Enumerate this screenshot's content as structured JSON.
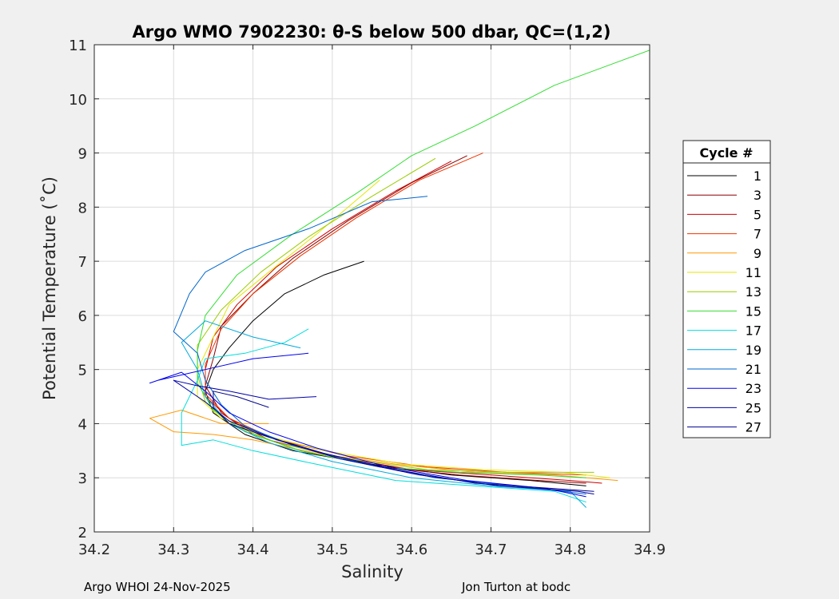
{
  "colors": {
    "figure_background": "#f0f0f0",
    "axes_background": "#ffffff",
    "grid": "#dcdcdc",
    "axis": "#262626"
  },
  "footer": {
    "left": "Argo WHOI 24-Nov-2025",
    "right": "Jon Turton at bodc"
  },
  "chart_data": {
    "type": "line",
    "title": "Argo WMO 7902230: θ-S below 500 dbar,  QC=(1,2)",
    "xlabel": "Salinity",
    "ylabel": "Potential Temperature (˚C)",
    "xlim": [
      34.2,
      34.9
    ],
    "ylim": [
      2,
      11
    ],
    "xticks": [
      "34.2",
      "34.3",
      "34.4",
      "34.5",
      "34.6",
      "34.7",
      "34.8",
      "34.9"
    ],
    "yticks": [
      "2",
      "3",
      "4",
      "5",
      "6",
      "7",
      "8",
      "9",
      "10",
      "11"
    ],
    "grid": true,
    "legend": {
      "title": "Cycle #",
      "placement": "outside-right"
    },
    "series": [
      {
        "name": "1",
        "color": "#000000",
        "points": [
          [
            34.54,
            7.0
          ],
          [
            34.49,
            6.75
          ],
          [
            34.44,
            6.4
          ],
          [
            34.4,
            5.9
          ],
          [
            34.37,
            5.4
          ],
          [
            34.35,
            5.0
          ],
          [
            34.34,
            4.6
          ],
          [
            34.35,
            4.2
          ],
          [
            34.39,
            3.8
          ],
          [
            34.45,
            3.5
          ],
          [
            34.55,
            3.25
          ],
          [
            34.65,
            3.05
          ],
          [
            34.75,
            2.95
          ],
          [
            34.82,
            2.85
          ]
        ]
      },
      {
        "name": "3",
        "color": "#8b0000",
        "points": [
          [
            34.67,
            8.95
          ],
          [
            34.6,
            8.45
          ],
          [
            34.52,
            7.75
          ],
          [
            34.45,
            7.05
          ],
          [
            34.4,
            6.4
          ],
          [
            34.36,
            5.8
          ],
          [
            34.35,
            5.2
          ],
          [
            34.34,
            4.7
          ],
          [
            34.36,
            4.2
          ],
          [
            34.4,
            3.8
          ],
          [
            34.46,
            3.5
          ],
          [
            34.56,
            3.2
          ],
          [
            34.66,
            3.05
          ],
          [
            34.76,
            2.95
          ],
          [
            34.82,
            2.9
          ]
        ]
      },
      {
        "name": "5",
        "color": "#cc0000",
        "points": [
          [
            34.65,
            8.85
          ],
          [
            34.58,
            8.3
          ],
          [
            34.5,
            7.6
          ],
          [
            34.43,
            6.9
          ],
          [
            34.38,
            6.2
          ],
          [
            34.35,
            5.6
          ],
          [
            34.34,
            5.0
          ],
          [
            34.34,
            4.5
          ],
          [
            34.37,
            4.1
          ],
          [
            34.42,
            3.7
          ],
          [
            34.5,
            3.4
          ],
          [
            34.6,
            3.15
          ],
          [
            34.7,
            3.05
          ],
          [
            34.8,
            2.95
          ],
          [
            34.84,
            2.9
          ]
        ]
      },
      {
        "name": "7",
        "color": "#ee3300",
        "points": [
          [
            34.69,
            9.0
          ],
          [
            34.61,
            8.5
          ],
          [
            34.53,
            7.8
          ],
          [
            34.46,
            7.1
          ],
          [
            34.4,
            6.4
          ],
          [
            34.36,
            5.75
          ],
          [
            34.34,
            5.1
          ],
          [
            34.34,
            4.55
          ],
          [
            34.37,
            4.1
          ],
          [
            34.43,
            3.7
          ],
          [
            34.52,
            3.4
          ],
          [
            34.62,
            3.2
          ],
          [
            34.72,
            3.1
          ],
          [
            34.82,
            3.05
          ]
        ]
      },
      {
        "name": "9",
        "color": "#ff9900",
        "points": [
          [
            34.42,
            4.0
          ],
          [
            34.36,
            4.0
          ],
          [
            34.31,
            4.25
          ],
          [
            34.27,
            4.1
          ],
          [
            34.3,
            3.85
          ],
          [
            34.35,
            3.8
          ],
          [
            34.4,
            3.7
          ],
          [
            34.48,
            3.45
          ],
          [
            34.58,
            3.25
          ],
          [
            34.68,
            3.1
          ],
          [
            34.78,
            3.05
          ],
          [
            34.86,
            2.95
          ]
        ]
      },
      {
        "name": "11",
        "color": "#e6e600",
        "points": [
          [
            34.56,
            8.5
          ],
          [
            34.48,
            7.5
          ],
          [
            34.42,
            6.8
          ],
          [
            34.37,
            6.2
          ],
          [
            34.35,
            5.6
          ],
          [
            34.33,
            5.0
          ],
          [
            34.33,
            4.5
          ],
          [
            34.36,
            4.1
          ],
          [
            34.41,
            3.8
          ],
          [
            34.49,
            3.5
          ],
          [
            34.59,
            3.25
          ],
          [
            34.69,
            3.15
          ],
          [
            34.79,
            3.1
          ],
          [
            34.85,
            3.0
          ]
        ]
      },
      {
        "name": "13",
        "color": "#99cc00",
        "points": [
          [
            34.63,
            8.9
          ],
          [
            34.55,
            8.2
          ],
          [
            34.47,
            7.45
          ],
          [
            34.41,
            6.8
          ],
          [
            34.36,
            6.1
          ],
          [
            34.33,
            5.45
          ],
          [
            34.33,
            4.9
          ],
          [
            34.34,
            4.4
          ],
          [
            34.37,
            4.0
          ],
          [
            34.43,
            3.65
          ],
          [
            34.52,
            3.35
          ],
          [
            34.62,
            3.15
          ],
          [
            34.72,
            3.1
          ],
          [
            34.83,
            3.1
          ]
        ]
      },
      {
        "name": "15",
        "color": "#33dd33",
        "points": [
          [
            34.9,
            10.9
          ],
          [
            34.78,
            10.25
          ],
          [
            34.68,
            9.5
          ],
          [
            34.6,
            8.95
          ],
          [
            34.53,
            8.25
          ],
          [
            34.45,
            7.5
          ],
          [
            34.38,
            6.75
          ],
          [
            34.34,
            6.0
          ],
          [
            34.33,
            5.35
          ],
          [
            34.33,
            4.75
          ],
          [
            34.35,
            4.25
          ],
          [
            34.39,
            3.85
          ],
          [
            34.46,
            3.5
          ],
          [
            34.56,
            3.2
          ],
          [
            34.66,
            3.1
          ],
          [
            34.76,
            3.05
          ],
          [
            34.82,
            3.0
          ]
        ]
      },
      {
        "name": "17",
        "color": "#00dddd",
        "points": [
          [
            34.47,
            5.75
          ],
          [
            34.44,
            5.5
          ],
          [
            34.39,
            5.3
          ],
          [
            34.34,
            5.2
          ],
          [
            34.33,
            4.8
          ],
          [
            34.31,
            4.2
          ],
          [
            34.31,
            3.6
          ],
          [
            34.35,
            3.7
          ],
          [
            34.4,
            3.5
          ],
          [
            34.48,
            3.25
          ],
          [
            34.58,
            2.95
          ],
          [
            34.68,
            2.85
          ],
          [
            34.78,
            2.75
          ],
          [
            34.82,
            2.55
          ]
        ]
      },
      {
        "name": "19",
        "color": "#00aadd",
        "points": [
          [
            34.46,
            5.4
          ],
          [
            34.4,
            5.6
          ],
          [
            34.34,
            5.9
          ],
          [
            34.31,
            5.5
          ],
          [
            34.33,
            5.0
          ],
          [
            34.34,
            4.5
          ],
          [
            34.37,
            4.0
          ],
          [
            34.42,
            3.65
          ],
          [
            34.5,
            3.3
          ],
          [
            34.6,
            3.0
          ],
          [
            34.7,
            2.85
          ],
          [
            34.8,
            2.75
          ],
          [
            34.82,
            2.45
          ]
        ]
      },
      {
        "name": "21",
        "color": "#0066cc",
        "points": [
          [
            34.62,
            8.2
          ],
          [
            34.55,
            8.1
          ],
          [
            34.47,
            7.6
          ],
          [
            34.39,
            7.2
          ],
          [
            34.34,
            6.8
          ],
          [
            34.32,
            6.4
          ],
          [
            34.3,
            5.7
          ],
          [
            34.33,
            5.3
          ],
          [
            34.34,
            4.8
          ],
          [
            34.36,
            4.35
          ],
          [
            34.39,
            3.95
          ],
          [
            34.45,
            3.6
          ],
          [
            34.53,
            3.3
          ],
          [
            34.63,
            3.0
          ],
          [
            34.73,
            2.85
          ],
          [
            34.82,
            2.7
          ]
        ]
      },
      {
        "name": "23",
        "color": "#0000ee",
        "points": [
          [
            34.47,
            5.3
          ],
          [
            34.4,
            5.2
          ],
          [
            34.34,
            5.0
          ],
          [
            34.28,
            4.8
          ],
          [
            34.27,
            4.75
          ],
          [
            34.31,
            4.95
          ],
          [
            34.34,
            4.6
          ],
          [
            34.37,
            4.2
          ],
          [
            34.42,
            3.85
          ],
          [
            34.48,
            3.55
          ],
          [
            34.57,
            3.2
          ],
          [
            34.67,
            2.95
          ],
          [
            34.77,
            2.8
          ],
          [
            34.82,
            2.65
          ]
        ]
      },
      {
        "name": "25",
        "color": "#0000aa",
        "points": [
          [
            34.48,
            4.5
          ],
          [
            34.42,
            4.45
          ],
          [
            34.37,
            4.6
          ],
          [
            34.33,
            4.7
          ],
          [
            34.3,
            4.8
          ],
          [
            34.34,
            4.4
          ],
          [
            34.37,
            4.05
          ],
          [
            34.43,
            3.7
          ],
          [
            34.51,
            3.35
          ],
          [
            34.61,
            3.05
          ],
          [
            34.71,
            2.85
          ],
          [
            34.81,
            2.75
          ],
          [
            34.83,
            2.7
          ]
        ]
      },
      {
        "name": "27",
        "color": "#00008b",
        "points": [
          [
            34.42,
            4.3
          ],
          [
            34.38,
            4.5
          ],
          [
            34.35,
            4.6
          ],
          [
            34.35,
            4.3
          ],
          [
            34.37,
            4.0
          ],
          [
            34.42,
            3.75
          ],
          [
            34.49,
            3.45
          ],
          [
            34.58,
            3.15
          ],
          [
            34.68,
            2.9
          ],
          [
            34.78,
            2.8
          ],
          [
            34.83,
            2.75
          ]
        ]
      }
    ]
  }
}
